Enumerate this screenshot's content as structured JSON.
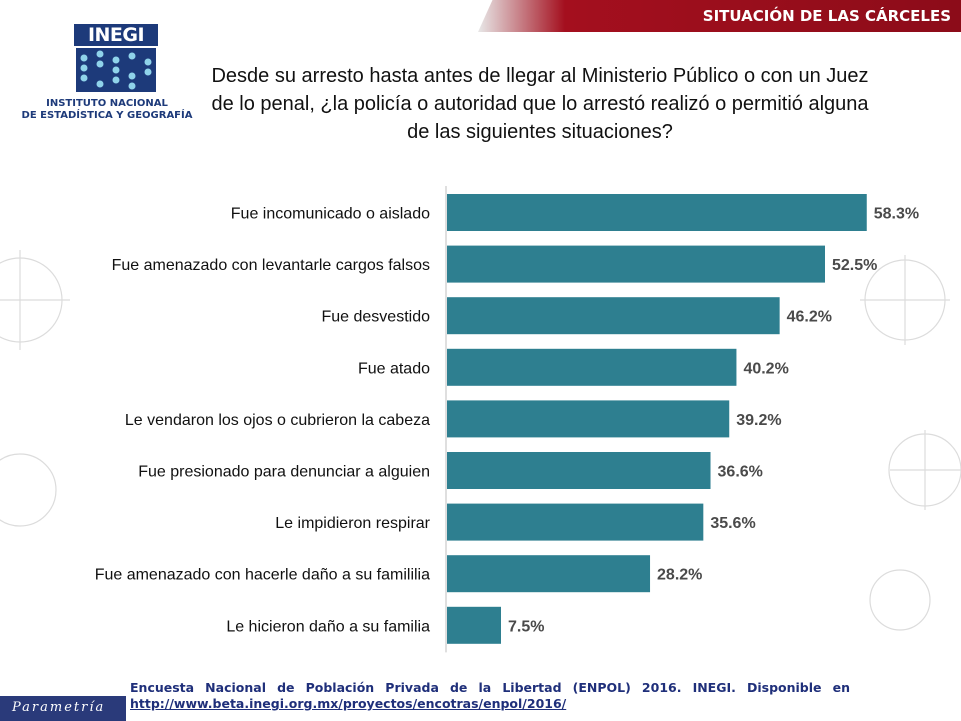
{
  "header": {
    "title": "SITUACIÓN DE LAS CÁRCELES"
  },
  "logo": {
    "name": "INEGI",
    "line1": "INSTITUTO NACIONAL",
    "line2": "DE ESTADÍSTICA Y GEOGRAFÍA"
  },
  "question": "Desde su arresto hasta antes de llegar al Ministerio Público o con un Juez de lo penal, ¿la policía o autoridad que lo arrestó realizó o permitió alguna de las siguientes situaciones?",
  "colors": {
    "bar": "#2e7f90",
    "header": "#a40f1e",
    "footer_text": "#1f2f7a",
    "brand": "#2a3a7a"
  },
  "chart_data": {
    "type": "bar",
    "orientation": "horizontal",
    "title": "",
    "xlabel": "",
    "ylabel": "",
    "xlim": [
      0,
      60
    ],
    "grid": false,
    "categories": [
      "Fue incomunicado o aislado",
      "Fue amenazado con levantarle cargos falsos",
      "Fue desvestido",
      "Fue atado",
      "Le vendaron los ojos o cubrieron la cabeza",
      "Fue presionado para denunciar a alguien",
      "Le impidieron respirar",
      "Fue amenazado con hacerle daño a su famililia",
      "Le hicieron daño a su familia"
    ],
    "values": [
      58.3,
      52.5,
      46.2,
      40.2,
      39.2,
      36.6,
      35.6,
      28.2,
      7.5
    ],
    "value_labels": [
      "58.3%",
      "52.5%",
      "46.2%",
      "40.2%",
      "39.2%",
      "36.6%",
      "35.6%",
      "28.2%",
      "7.5%"
    ]
  },
  "footer": {
    "source": "Encuesta Nacional de Población Privada de la Libertad (ENPOL) 2016. INEGI. Disponible en",
    "link": "http://www.beta.inegi.org.mx/proyectos/encotras/enpol/2016/"
  },
  "brand": {
    "name": "Parametría"
  }
}
